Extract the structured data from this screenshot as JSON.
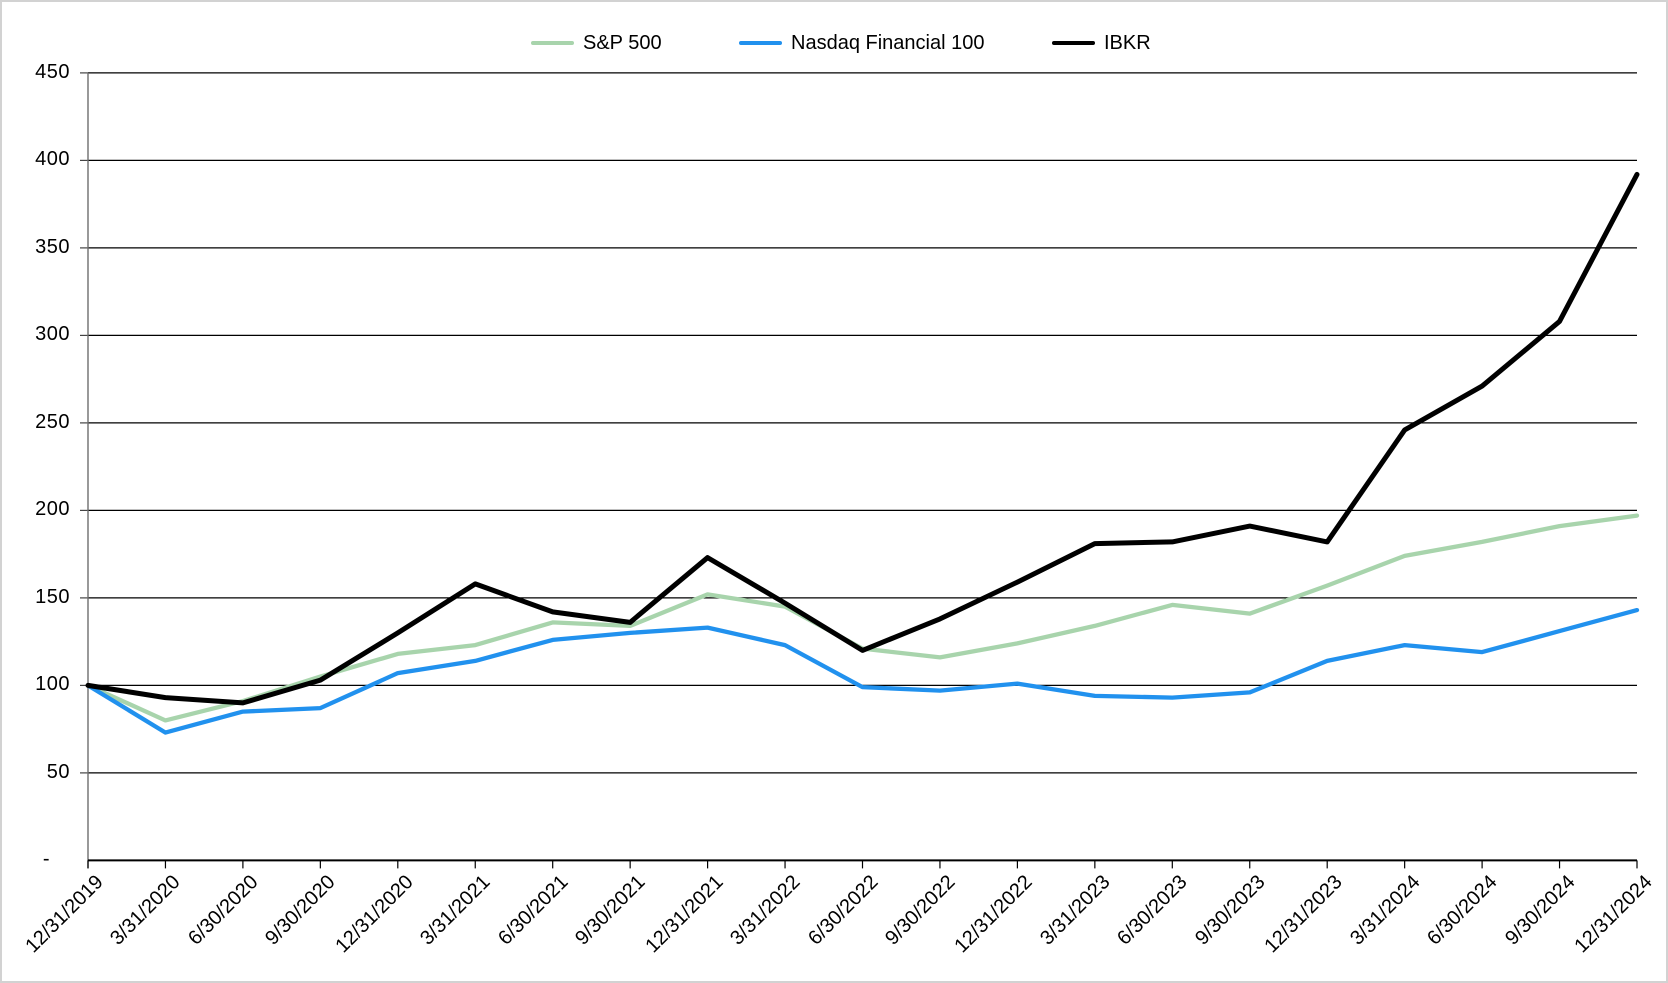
{
  "chart": {
    "title": "",
    "y_axis_tick_labels": [
      "450",
      "400",
      "350",
      "300",
      "250",
      "200",
      "150",
      "100",
      "50",
      "-"
    ],
    "legend_labels": [
      "S&P 500",
      "Nasdaq Financial 100",
      "IBKR"
    ],
    "colors": {
      "sp500_line": "#a8d4ac",
      "nasdaq_financial_line": "#2191ee",
      "ibkr_line": "#000000",
      "gridline": "#000000",
      "axis_line": "#6e6e6e"
    }
  },
  "chart_data": {
    "type": "line",
    "title": "",
    "xlabel": "",
    "ylabel": "",
    "ylim": [
      0,
      450
    ],
    "y_tick_step": 50,
    "grid": "horizontal",
    "legend_position": "top-center",
    "x_label_rotation": -45,
    "categories": [
      "12/31/2019",
      "3/31/2020",
      "6/30/2020",
      "9/30/2020",
      "12/31/2020",
      "3/31/2021",
      "6/30/2021",
      "9/30/2021",
      "12/31/2021",
      "3/31/2022",
      "6/30/2022",
      "9/30/2022",
      "12/31/2022",
      "3/31/2023",
      "6/30/2023",
      "9/30/2023",
      "12/31/2023",
      "3/31/2024",
      "6/30/2024",
      "9/30/2024",
      "12/31/2024"
    ],
    "series": [
      {
        "name": "S&P 500",
        "color": "#a8d4ac",
        "values": [
          100,
          80,
          91,
          105,
          118,
          123,
          136,
          134,
          152,
          145,
          121,
          116,
          124,
          134,
          146,
          141,
          157,
          174,
          182,
          191,
          197
        ]
      },
      {
        "name": "Nasdaq Financial 100",
        "color": "#2191ee",
        "values": [
          100,
          73,
          85,
          87,
          107,
          114,
          126,
          130,
          133,
          123,
          99,
          97,
          101,
          94,
          93,
          96,
          114,
          123,
          119,
          131,
          143
        ]
      },
      {
        "name": "IBKR",
        "color": "#000000",
        "values": [
          100,
          93,
          90,
          103,
          130,
          158,
          142,
          136,
          173,
          147,
          120,
          138,
          159,
          181,
          182,
          191,
          182,
          246,
          271,
          308,
          392
        ]
      }
    ]
  }
}
